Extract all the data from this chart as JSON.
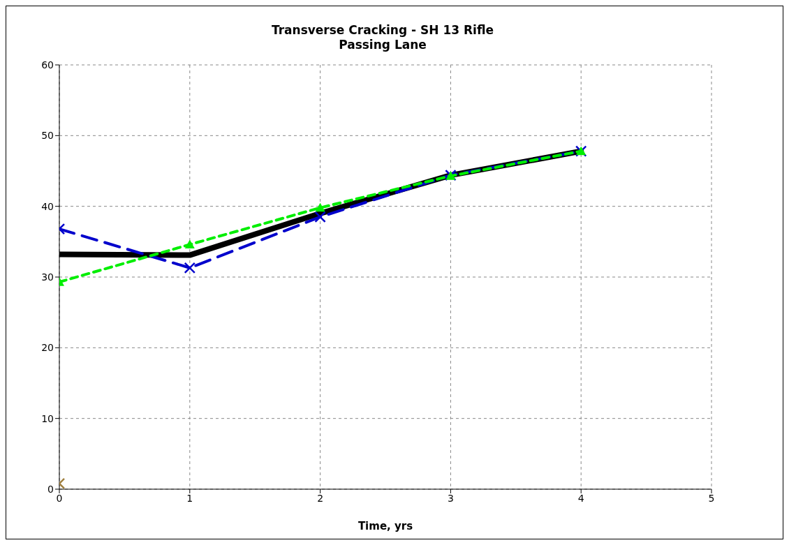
{
  "chart_data": {
    "type": "line",
    "title": "Transverse Cracking - SH 13 Rifle\nPassing Lane",
    "xlabel": "Time, yrs",
    "x": [
      0,
      1,
      2,
      3,
      4
    ],
    "series": [
      {
        "color": "#000000",
        "values": [
          33.2,
          33.1,
          39.0,
          44.4,
          47.8
        ],
        "marker": "none",
        "line_style": "solid"
      },
      {
        "color": "#0000cc",
        "values": [
          36.8,
          31.3,
          38.5,
          44.4,
          47.8
        ],
        "marker": "cross",
        "line_style": "dashed"
      },
      {
        "color": "#00ee00",
        "values": [
          29.3,
          34.6,
          39.8,
          44.3,
          47.8
        ],
        "marker": "triangle",
        "line_style": "dashed"
      },
      {
        "type": "scatter",
        "color": "#a08040",
        "x": [
          0
        ],
        "values": [
          0.8
        ],
        "marker": "cross"
      }
    ],
    "xlim": [
      0,
      5
    ],
    "xticks": [
      0,
      1,
      2,
      3,
      4,
      5
    ],
    "ylim": [
      0,
      60
    ],
    "yticks": [
      0,
      10,
      20,
      30,
      40,
      50,
      60
    ],
    "grid": true,
    "legend": false
  }
}
